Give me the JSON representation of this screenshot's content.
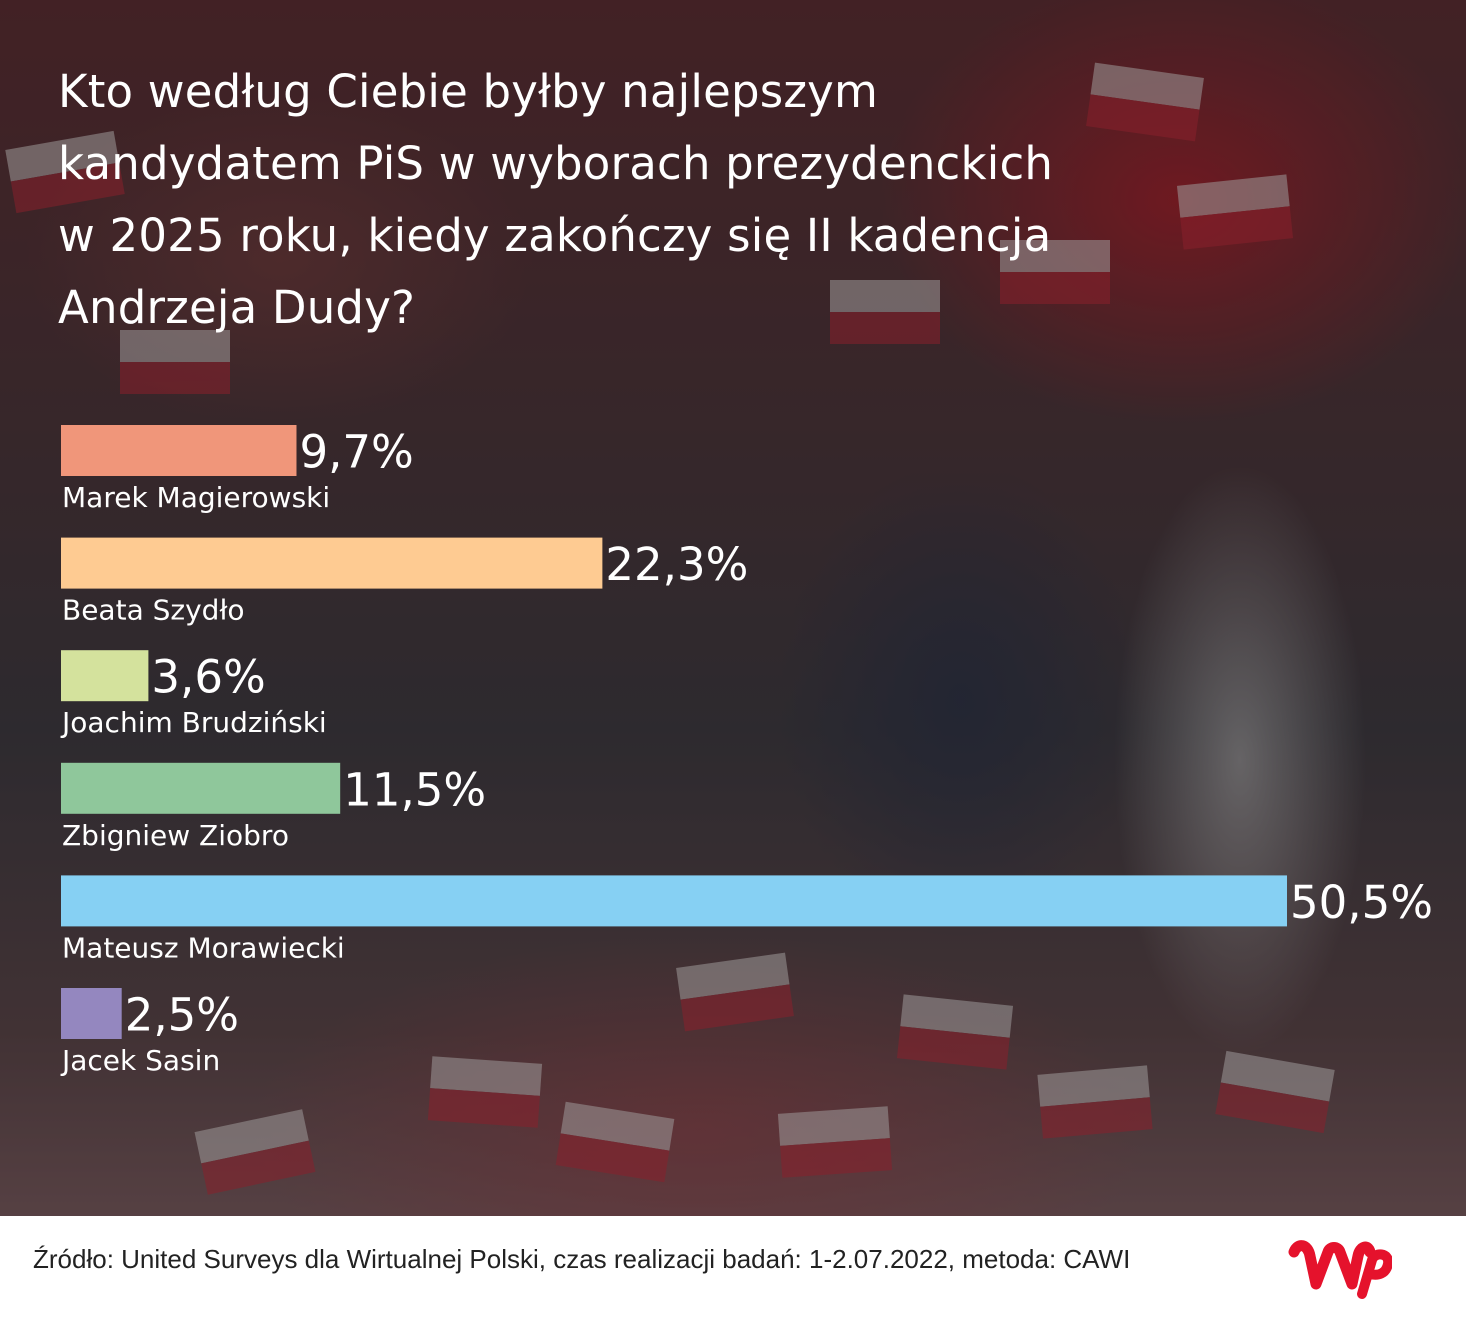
{
  "chart_data": {
    "type": "bar",
    "orientation": "horizontal",
    "title": "Kto według Ciebie byłby najlepszym kandydatem PiS w wyborach prezydenckich w 2025 roku, kiedy zakończy się II kadencja Andrzeja Dudy?",
    "title_lines": [
      "Kto według Ciebie byłby najlepszym",
      "kandydatem PiS w wyborach prezydenckich",
      "w 2025 roku, kiedy zakończy się II kadencja",
      "Andrzeja Dudy?"
    ],
    "xlabel": "",
    "ylabel": "",
    "xlim": [
      0,
      50.5
    ],
    "grid": false,
    "legend": "none",
    "categories": [
      "Marek Magierowski",
      "Beata Szydło",
      "Joachim Brudziński",
      "Zbigniew Ziobro",
      "Mateusz Morawiecki",
      "Jacek Sasin"
    ],
    "values": [
      9.7,
      22.3,
      3.6,
      11.5,
      50.5,
      2.5
    ],
    "value_labels": [
      "9,7%",
      "22,3%",
      "3,6%",
      "11,5%",
      "50,5%",
      "2,5%"
    ],
    "colors": [
      "#f0967a",
      "#fecb92",
      "#d4e29d",
      "#8fc79b",
      "#86d0f3",
      "#9487bf"
    ]
  },
  "footer": {
    "source": "Źródło: United Surveys dla Wirtualnej Polski, czas realizacji badań: 1-2.07.2022, metoda: CAWI",
    "logo": "wp-logo",
    "logo_color": "#e5122c"
  }
}
